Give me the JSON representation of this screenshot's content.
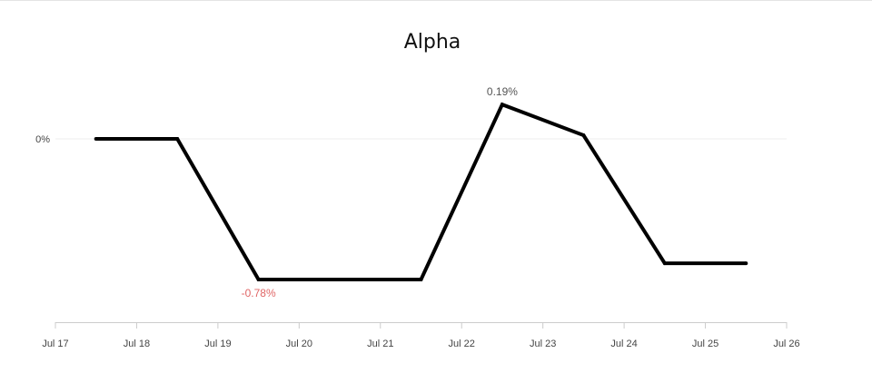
{
  "chart_data": {
    "type": "line",
    "title": "Alpha",
    "xlabel": "",
    "ylabel": "",
    "x_ticks": [
      "Jul 17",
      "Jul 18",
      "Jul 19",
      "Jul 20",
      "Jul 21",
      "Jul 22",
      "Jul 23",
      "Jul 24",
      "Jul 25",
      "Jul 26"
    ],
    "xlim": [
      "2024-07-17T00:00",
      "2024-07-26T00:00"
    ],
    "y_ticks": [
      {
        "value": 0,
        "label": "0%"
      }
    ],
    "ylim": [
      -1.0,
      0.35
    ],
    "grid": "horizontal at 0%",
    "legend": "none",
    "series": [
      {
        "color": "#000000",
        "points": [
          {
            "x": "2024-07-17T12:00",
            "y": 0.0
          },
          {
            "x": "2024-07-18T12:00",
            "y": 0.0
          },
          {
            "x": "2024-07-19T12:00",
            "y": -0.78
          },
          {
            "x": "2024-07-20T12:00",
            "y": -0.78
          },
          {
            "x": "2024-07-21T12:00",
            "y": -0.78
          },
          {
            "x": "2024-07-22T12:00",
            "y": 0.19
          },
          {
            "x": "2024-07-23T12:00",
            "y": 0.02
          },
          {
            "x": "2024-07-24T12:00",
            "y": -0.69
          },
          {
            "x": "2024-07-25T12:00",
            "y": -0.69
          }
        ]
      }
    ],
    "annotations": [
      {
        "x": "2024-07-22T12:00",
        "y": 0.19,
        "text": "0.19%",
        "color": "#555555",
        "position": "above"
      },
      {
        "x": "2024-07-19T12:00",
        "y": -0.78,
        "text": "-0.78%",
        "color": "#e06666",
        "position": "below"
      }
    ]
  }
}
